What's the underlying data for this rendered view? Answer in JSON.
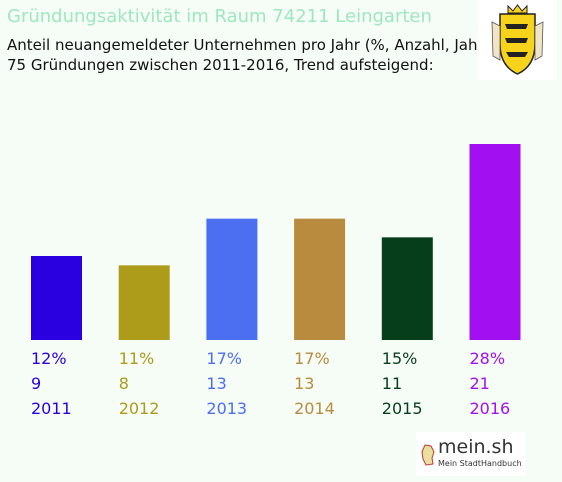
{
  "chart_data": {
    "type": "bar",
    "title": "Gründungsaktivität im Raum 74211 Leingarten",
    "subtitle_lines": [
      "Anteil neuangemeldeter Unternehmen pro Jahr (%, Anzahl, Jahr)",
      "75 Gründungen zwischen 2011-2016, Trend aufsteigend:"
    ],
    "categories": [
      "2011",
      "2012",
      "2013",
      "2014",
      "2015",
      "2016"
    ],
    "values": [
      9,
      8,
      13,
      13,
      11,
      21
    ],
    "percent_labels": [
      "12%",
      "11%",
      "17%",
      "17%",
      "15%",
      "28%"
    ],
    "count_labels": [
      "9",
      "8",
      "13",
      "13",
      "11",
      "21"
    ],
    "colors": [
      "#2a00e0",
      "#ad9b1a",
      "#4b6ff0",
      "#b98b3e",
      "#063e1c",
      "#a20ff0"
    ],
    "ylim": [
      0,
      21
    ],
    "grid": false,
    "legend": "none"
  },
  "logo": {
    "brand": "mein.sh",
    "tagline": "Mein StadtHandbuch"
  },
  "crest": {
    "icon": "baden-wuerttemberg-coat-of-arms-icon"
  }
}
